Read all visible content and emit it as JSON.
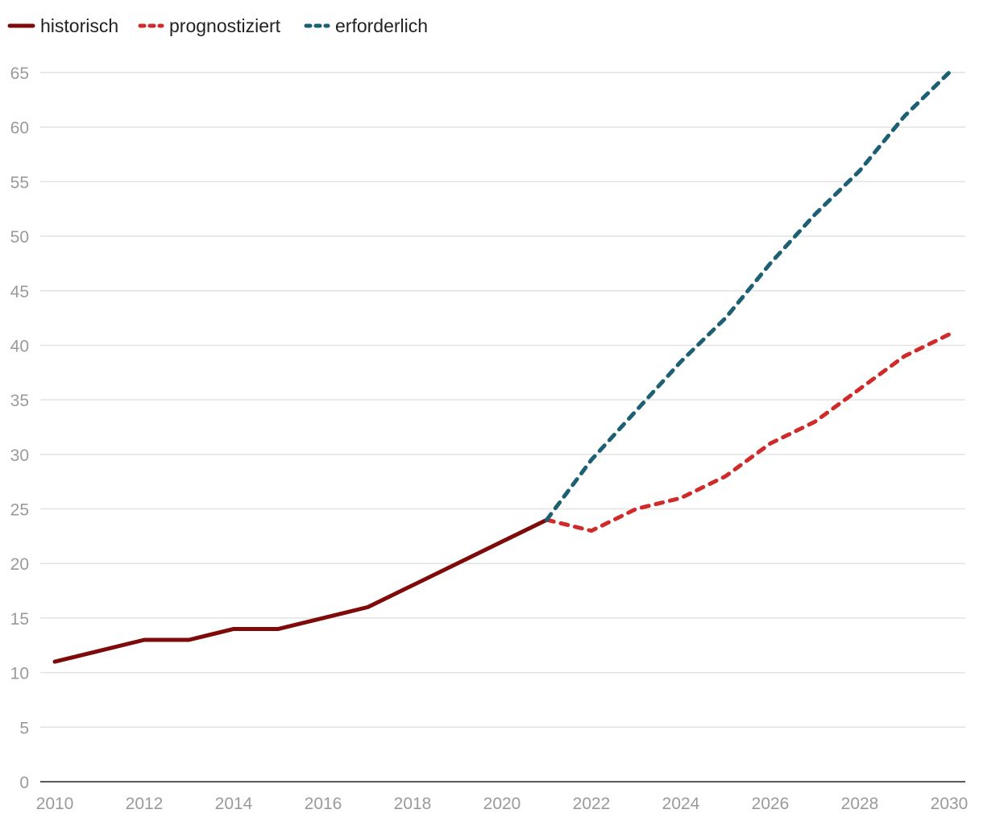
{
  "chart_data": {
    "type": "line",
    "title": "",
    "xlabel": "",
    "ylabel": "",
    "xlim": [
      2010,
      2030
    ],
    "ylim": [
      0,
      65
    ],
    "x_ticks": [
      2010,
      2012,
      2014,
      2016,
      2018,
      2020,
      2022,
      2024,
      2026,
      2028,
      2030
    ],
    "y_ticks": [
      0,
      5,
      10,
      15,
      20,
      25,
      30,
      35,
      40,
      45,
      50,
      55,
      60,
      65
    ],
    "grid": "horizontal",
    "legend_position": "top-left",
    "series": [
      {
        "name": "historisch",
        "color": "#7f0a0a",
        "style": "solid",
        "points": [
          {
            "x": 2010,
            "y": 11
          },
          {
            "x": 2011,
            "y": 12
          },
          {
            "x": 2012,
            "y": 13
          },
          {
            "x": 2013,
            "y": 13
          },
          {
            "x": 2014,
            "y": 14
          },
          {
            "x": 2015,
            "y": 14
          },
          {
            "x": 2016,
            "y": 15
          },
          {
            "x": 2017,
            "y": 16
          },
          {
            "x": 2018,
            "y": 18
          },
          {
            "x": 2019,
            "y": 20
          },
          {
            "x": 2020,
            "y": 22
          },
          {
            "x": 2021,
            "y": 24
          }
        ]
      },
      {
        "name": "prognostiziert",
        "color": "#d02b2b",
        "style": "dashed",
        "points": [
          {
            "x": 2021,
            "y": 24
          },
          {
            "x": 2022,
            "y": 23
          },
          {
            "x": 2023,
            "y": 25
          },
          {
            "x": 2024,
            "y": 26
          },
          {
            "x": 2025,
            "y": 28
          },
          {
            "x": 2026,
            "y": 31
          },
          {
            "x": 2027,
            "y": 33
          },
          {
            "x": 2028,
            "y": 36
          },
          {
            "x": 2029,
            "y": 39
          },
          {
            "x": 2030,
            "y": 41
          }
        ]
      },
      {
        "name": "erforderlich",
        "color": "#1d5f73",
        "style": "dashed",
        "points": [
          {
            "x": 2021,
            "y": 24
          },
          {
            "x": 2022,
            "y": 29.5
          },
          {
            "x": 2023,
            "y": 34
          },
          {
            "x": 2024,
            "y": 38.5
          },
          {
            "x": 2025,
            "y": 42.5
          },
          {
            "x": 2026,
            "y": 47.5
          },
          {
            "x": 2027,
            "y": 52
          },
          {
            "x": 2028,
            "y": 56
          },
          {
            "x": 2029,
            "y": 61
          },
          {
            "x": 2030,
            "y": 65
          }
        ]
      }
    ]
  }
}
